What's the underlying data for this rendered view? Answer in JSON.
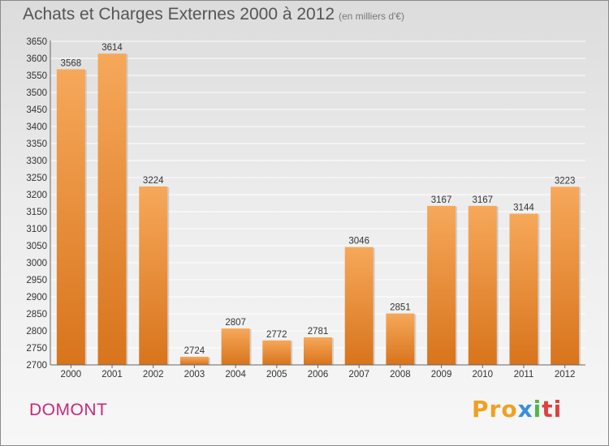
{
  "header": {
    "title": "Achats et Charges Externes 2000 à 2012",
    "subtitle": "(en milliers d'€)"
  },
  "footer": {
    "commune": "DOMONT",
    "logo": "Proxiti",
    "logo_parts": [
      "Pro",
      "x",
      "i",
      "ti"
    ]
  },
  "colors": {
    "bar_top": "#f6a85a",
    "bar_bottom": "#d8741c",
    "commune": "#c8287a",
    "grid": "#ffffff"
  },
  "chart_data": {
    "type": "bar",
    "title": "Achats et Charges Externes 2000 à 2012",
    "subtitle": "(en milliers d'€)",
    "categories": [
      "2000",
      "2001",
      "2002",
      "2003",
      "2004",
      "2005",
      "2006",
      "2007",
      "2008",
      "2009",
      "2010",
      "2011",
      "2012"
    ],
    "values": [
      3568,
      3614,
      3224,
      2724,
      2807,
      2772,
      2781,
      3046,
      2851,
      3167,
      3167,
      3144,
      3223
    ],
    "ylim": [
      2700,
      3650
    ],
    "ytick_step": 50,
    "grid": true,
    "legend": "none"
  }
}
